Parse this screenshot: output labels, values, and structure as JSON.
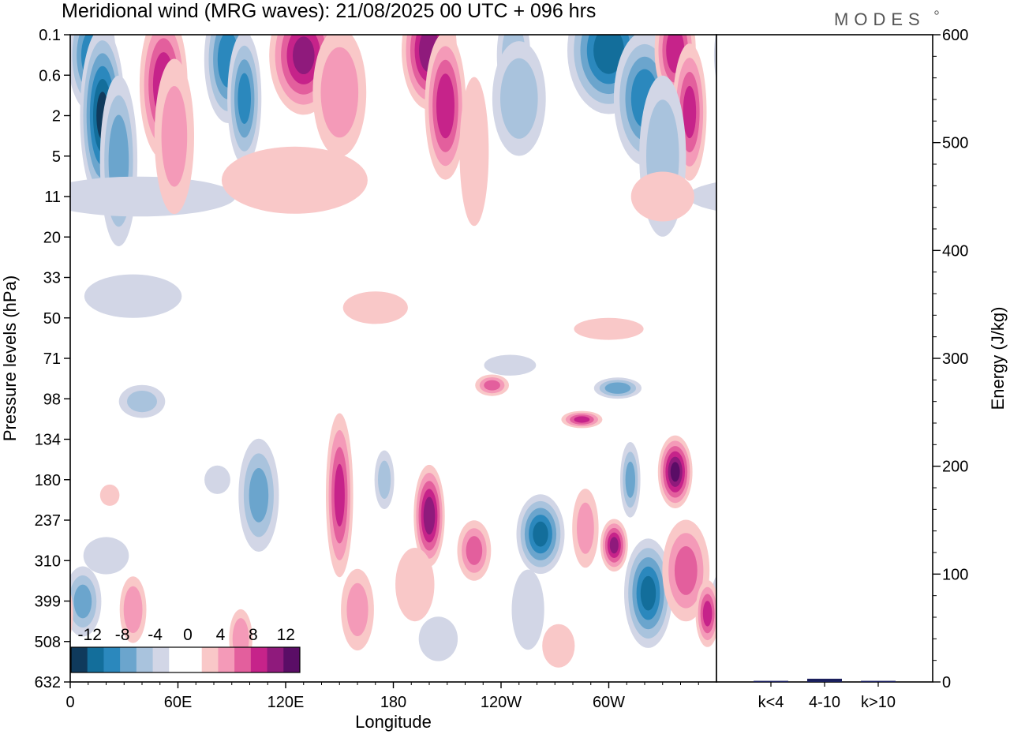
{
  "header": {
    "title": "Meridional wind (MRG waves):  21/08/2025  00 UTC  + 096 hrs",
    "logo": "MODES"
  },
  "chart_data": [
    {
      "type": "heatmap",
      "title": "Meridional wind (MRG waves)",
      "xlabel": "Longitude",
      "ylabel": "Pressure levels (hPa)",
      "x_ticks": [
        "0",
        "60E",
        "120E",
        "180",
        "120W",
        "60W"
      ],
      "y_ticks": [
        "0.1",
        "0.6",
        "2",
        "5",
        "11",
        "20",
        "33",
        "50",
        "71",
        "98",
        "134",
        "180",
        "237",
        "310",
        "399",
        "508",
        "632"
      ],
      "colorbar": {
        "labels": [
          "-12",
          "-8",
          "-4",
          "0",
          "4",
          "8",
          "12"
        ],
        "colors": [
          "#0f3a5c",
          "#136e9b",
          "#2b88bd",
          "#6ba5cd",
          "#a9c3dd",
          "#d2d6e6",
          "#ffffff",
          "#ffffff",
          "#f9c8c8",
          "#f49ab8",
          "#e35f9d",
          "#c6238a",
          "#8f1a7c",
          "#5a0d66"
        ]
      },
      "blobs": [
        {
          "lon": 12,
          "p": 0.25,
          "rx": 14,
          "ry": 4.5,
          "v": -10
        },
        {
          "lon": 18,
          "p": 2.0,
          "rx": 13,
          "ry": 13,
          "v": -13
        },
        {
          "lon": 27,
          "p": 5.5,
          "rx": 11,
          "ry": 9,
          "v": -8
        },
        {
          "lon": 38,
          "p": 11.0,
          "rx": 60,
          "ry": 4,
          "v": -4
        },
        {
          "lon": 52,
          "p": 0.8,
          "rx": 14,
          "ry": 9,
          "v": 10
        },
        {
          "lon": 58,
          "p": 3.2,
          "rx": 12,
          "ry": 9,
          "v": 5
        },
        {
          "lon": 88,
          "p": 0.3,
          "rx": 14,
          "ry": 6,
          "v": -10
        },
        {
          "lon": 97,
          "p": 1.2,
          "rx": 10,
          "ry": 6,
          "v": -9
        },
        {
          "lon": 130,
          "p": 0.25,
          "rx": 20,
          "ry": 5,
          "v": 11
        },
        {
          "lon": 150,
          "p": 1.0,
          "rx": 16,
          "ry": 6,
          "v": 6
        },
        {
          "lon": 125,
          "p": 8.0,
          "rx": 45,
          "ry": 5,
          "v": 4
        },
        {
          "lon": 200,
          "p": 0.2,
          "rx": 16,
          "ry": 5,
          "v": 12
        },
        {
          "lon": 209,
          "p": 1.5,
          "rx": 12,
          "ry": 8,
          "v": 10
        },
        {
          "lon": 225,
          "p": 4.5,
          "rx": 9,
          "ry": 7,
          "v": 4
        },
        {
          "lon": 247,
          "p": 0.25,
          "rx": 10,
          "ry": 3,
          "v": -6
        },
        {
          "lon": 250,
          "p": 1.2,
          "rx": 16,
          "ry": 4,
          "v": -6
        },
        {
          "lon": 300,
          "p": 0.2,
          "rx": 24,
          "ry": 6,
          "v": -12
        },
        {
          "lon": 320,
          "p": 1.2,
          "rx": 18,
          "ry": 6,
          "v": -10
        },
        {
          "lon": 337,
          "p": 0.2,
          "rx": 12,
          "ry": 3.5,
          "v": 10
        },
        {
          "lon": 345,
          "p": 1.8,
          "rx": 10,
          "ry": 6,
          "v": 9
        },
        {
          "lon": 330,
          "p": 5.0,
          "rx": 14,
          "ry": 8,
          "v": -6
        },
        {
          "lon": 330,
          "p": 11.0,
          "rx": 20,
          "ry": 5,
          "v": 3
        },
        {
          "lon": 35,
          "p": 40.0,
          "rx": 30,
          "ry": 10,
          "v": -4
        },
        {
          "lon": 170,
          "p": 45.0,
          "rx": 20,
          "ry": 8,
          "v": 4
        },
        {
          "lon": 300,
          "p": 55.0,
          "rx": 22,
          "ry": 6,
          "v": 3
        },
        {
          "lon": 245,
          "p": 75.0,
          "rx": 16,
          "ry": 7,
          "v": -4
        },
        {
          "lon": 235,
          "p": 88.0,
          "rx": 10,
          "ry": 8,
          "v": 7
        },
        {
          "lon": 40,
          "p": 100.0,
          "rx": 14,
          "ry": 14,
          "v": -5
        },
        {
          "lon": 305,
          "p": 90.0,
          "rx": 14,
          "ry": 8,
          "v": -8
        },
        {
          "lon": 285,
          "p": 115.0,
          "rx": 12,
          "ry": 8,
          "v": 9
        },
        {
          "lon": 22,
          "p": 200.0,
          "rx": 6,
          "ry": 16,
          "v": 4
        },
        {
          "lon": 7,
          "p": 400.0,
          "rx": 11,
          "ry": 90,
          "v": -7
        },
        {
          "lon": 20,
          "p": 300.0,
          "rx": 14,
          "ry": 40,
          "v": -4
        },
        {
          "lon": 35,
          "p": 420.0,
          "rx": 8,
          "ry": 90,
          "v": 6
        },
        {
          "lon": 82,
          "p": 180.0,
          "rx": 8,
          "ry": 20,
          "v": -4
        },
        {
          "lon": 105,
          "p": 200.0,
          "rx": 12,
          "ry": 80,
          "v": -7
        },
        {
          "lon": 95,
          "p": 500.0,
          "rx": 7,
          "ry": 90,
          "v": 6
        },
        {
          "lon": 150,
          "p": 200.0,
          "rx": 8,
          "ry": 110,
          "v": 9
        },
        {
          "lon": 160,
          "p": 420.0,
          "rx": 10,
          "ry": 110,
          "v": 5
        },
        {
          "lon": 175,
          "p": 180.0,
          "rx": 6,
          "ry": 40,
          "v": -5
        },
        {
          "lon": 200,
          "p": 230.0,
          "rx": 9,
          "ry": 80,
          "v": 12
        },
        {
          "lon": 192,
          "p": 360.0,
          "rx": 12,
          "ry": 90,
          "v": 4
        },
        {
          "lon": 225,
          "p": 290.0,
          "rx": 10,
          "ry": 60,
          "v": 7
        },
        {
          "lon": 205,
          "p": 500.0,
          "rx": 12,
          "ry": 70,
          "v": -4
        },
        {
          "lon": 262,
          "p": 260.0,
          "rx": 14,
          "ry": 70,
          "v": -11
        },
        {
          "lon": 255,
          "p": 420.0,
          "rx": 10,
          "ry": 110,
          "v": -4
        },
        {
          "lon": 272,
          "p": 520.0,
          "rx": 10,
          "ry": 70,
          "v": 4
        },
        {
          "lon": 287,
          "p": 250.0,
          "rx": 8,
          "ry": 70,
          "v": 5
        },
        {
          "lon": 303,
          "p": 280.0,
          "rx": 8,
          "ry": 50,
          "v": 11
        },
        {
          "lon": 312,
          "p": 180.0,
          "rx": 6,
          "ry": 50,
          "v": -7
        },
        {
          "lon": 322,
          "p": 380.0,
          "rx": 14,
          "ry": 130,
          "v": -11
        },
        {
          "lon": 337,
          "p": 170.0,
          "rx": 10,
          "ry": 45,
          "v": 13
        },
        {
          "lon": 343,
          "p": 330.0,
          "rx": 14,
          "ry": 110,
          "v": 7
        },
        {
          "lon": 355,
          "p": 430.0,
          "rx": 7,
          "ry": 90,
          "v": 9
        }
      ]
    },
    {
      "type": "bar",
      "categories": [
        "k<4",
        "4-10",
        "k>10"
      ],
      "values": [
        1,
        3,
        1
      ],
      "ylabel": "Energy (J/kg)",
      "ylim": [
        0,
        600
      ],
      "y_ticks": [
        "0",
        "100",
        "200",
        "300",
        "400",
        "500",
        "600"
      ],
      "bar_color": "#1a1f5c"
    }
  ]
}
